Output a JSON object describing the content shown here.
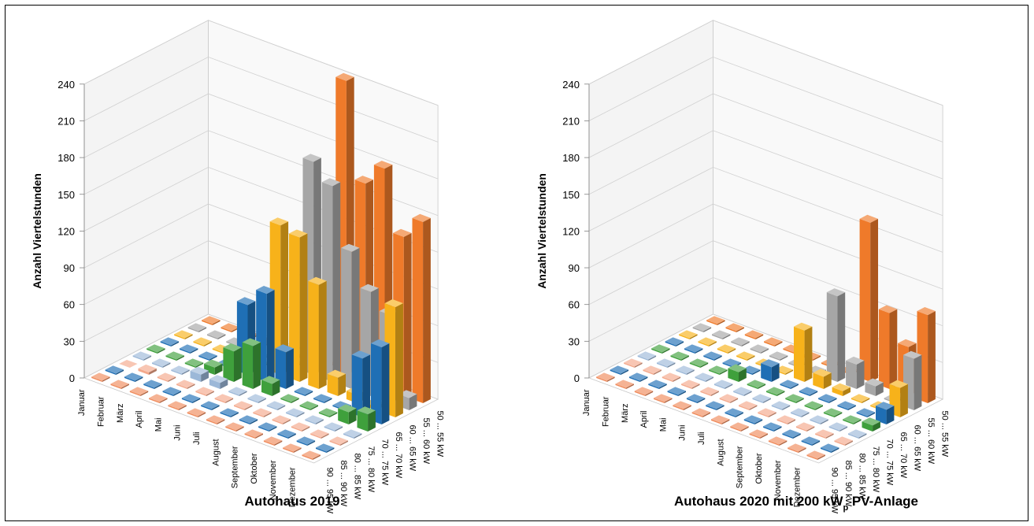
{
  "chart_data": [
    {
      "type": "bar",
      "title": "Autohaus 2019",
      "title_sub": "",
      "title_rest": "",
      "ylabel": "Anzahl Viertelstunden",
      "ylim": [
        0,
        240
      ],
      "yticks": [
        "0",
        "30",
        "60",
        "90",
        "120",
        "150",
        "180",
        "210",
        "240"
      ],
      "months": [
        "Januar",
        "Februar",
        "März",
        "April",
        "Mai",
        "Juni",
        "Juli",
        "August",
        "September",
        "Oktober",
        "November",
        "Dezember"
      ],
      "series": [
        {
          "name": "90 ... 95 kW",
          "color": "#f08a5a",
          "values": [
            1,
            1,
            1,
            1,
            1,
            1,
            1,
            1,
            1,
            1,
            1,
            1
          ]
        },
        {
          "name": "85 ... 90 kW",
          "color": "#1f6fb5",
          "values": [
            1,
            1,
            1,
            1,
            1,
            1,
            1,
            1,
            1,
            1,
            1,
            1
          ]
        },
        {
          "name": "80 ... 85 kW",
          "color": "#f4a88a",
          "values": [
            0,
            2,
            1,
            1,
            1,
            1,
            1,
            1,
            1,
            1,
            1,
            1
          ]
        },
        {
          "name": "75 ... 80 kW",
          "color": "#9cb8d8",
          "values": [
            1,
            1,
            1,
            6,
            5,
            1,
            1,
            1,
            1,
            1,
            1,
            1
          ]
        },
        {
          "name": "70 ... 75 kW",
          "color": "#3fa03c",
          "values": [
            1,
            1,
            1,
            6,
            25,
            35,
            10,
            1,
            1,
            1,
            10,
            14
          ]
        },
        {
          "name": "65 ... 70 kW",
          "color": "#1f6fb5",
          "values": [
            1,
            1,
            1,
            1,
            57,
            72,
            30,
            1,
            1,
            1,
            48,
            63
          ]
        },
        {
          "name": "60 ... 65 kW",
          "color": "#f7b21a",
          "values": [
            1,
            1,
            1,
            1,
            1,
            122,
            118,
            85,
            15,
            7,
            3,
            90
          ]
        },
        {
          "name": "55 ... 60 kW",
          "color": "#a6a6a6",
          "values": [
            1,
            1,
            1,
            1,
            1,
            1,
            174,
            160,
            112,
            85,
            72,
            10
          ]
        },
        {
          "name": "50 ... 55 kW",
          "color": "#ef7a2a",
          "values": [
            1,
            1,
            1,
            1,
            1,
            1,
            1,
            240,
            162,
            180,
            130,
            148
          ]
        }
      ]
    },
    {
      "type": "bar",
      "title": "Autohaus 2020 mit 200 kW",
      "title_sub": "p",
      "title_rest": " PV-Anlage",
      "ylabel": "Anzahl Viertelstunden",
      "ylim": [
        0,
        240
      ],
      "yticks": [
        "0",
        "30",
        "60",
        "90",
        "120",
        "150",
        "180",
        "210",
        "240"
      ],
      "months": [
        "Januar",
        "Februar",
        "März",
        "April",
        "Mai",
        "Juni",
        "Juli",
        "August",
        "September",
        "Oktober",
        "November",
        "Dezember"
      ],
      "series": [
        {
          "name": "90 ... 95 kW",
          "color": "#f08a5a",
          "values": [
            1,
            1,
            1,
            1,
            1,
            1,
            1,
            1,
            1,
            1,
            1,
            1
          ]
        },
        {
          "name": "85 ... 90 kW",
          "color": "#1f6fb5",
          "values": [
            1,
            1,
            1,
            1,
            1,
            1,
            1,
            1,
            1,
            1,
            1,
            1
          ]
        },
        {
          "name": "80 ... 85 kW",
          "color": "#f4a88a",
          "values": [
            1,
            1,
            1,
            1,
            1,
            1,
            1,
            1,
            1,
            1,
            1,
            1
          ]
        },
        {
          "name": "75 ... 80 kW",
          "color": "#9cb8d8",
          "values": [
            1,
            1,
            1,
            1,
            1,
            1,
            1,
            1,
            1,
            1,
            1,
            1
          ]
        },
        {
          "name": "70 ... 75 kW",
          "color": "#3fa03c",
          "values": [
            1,
            1,
            1,
            1,
            8,
            1,
            1,
            1,
            1,
            1,
            1,
            5
          ]
        },
        {
          "name": "65 ... 70 kW",
          "color": "#1f6fb5",
          "values": [
            1,
            1,
            1,
            1,
            1,
            12,
            1,
            1,
            1,
            1,
            1,
            12
          ]
        },
        {
          "name": "60 ... 65 kW",
          "color": "#f7b21a",
          "values": [
            1,
            1,
            1,
            1,
            1,
            1,
            42,
            10,
            4,
            1,
            1,
            24
          ]
        },
        {
          "name": "55 ... 60 kW",
          "color": "#a6a6a6",
          "values": [
            1,
            1,
            1,
            1,
            1,
            1,
            1,
            70,
            20,
            8,
            1,
            42
          ]
        },
        {
          "name": "50 ... 55 kW",
          "color": "#ef7a2a",
          "values": [
            1,
            1,
            1,
            1,
            1,
            1,
            1,
            1,
            130,
            62,
            40,
            72
          ]
        }
      ]
    }
  ]
}
